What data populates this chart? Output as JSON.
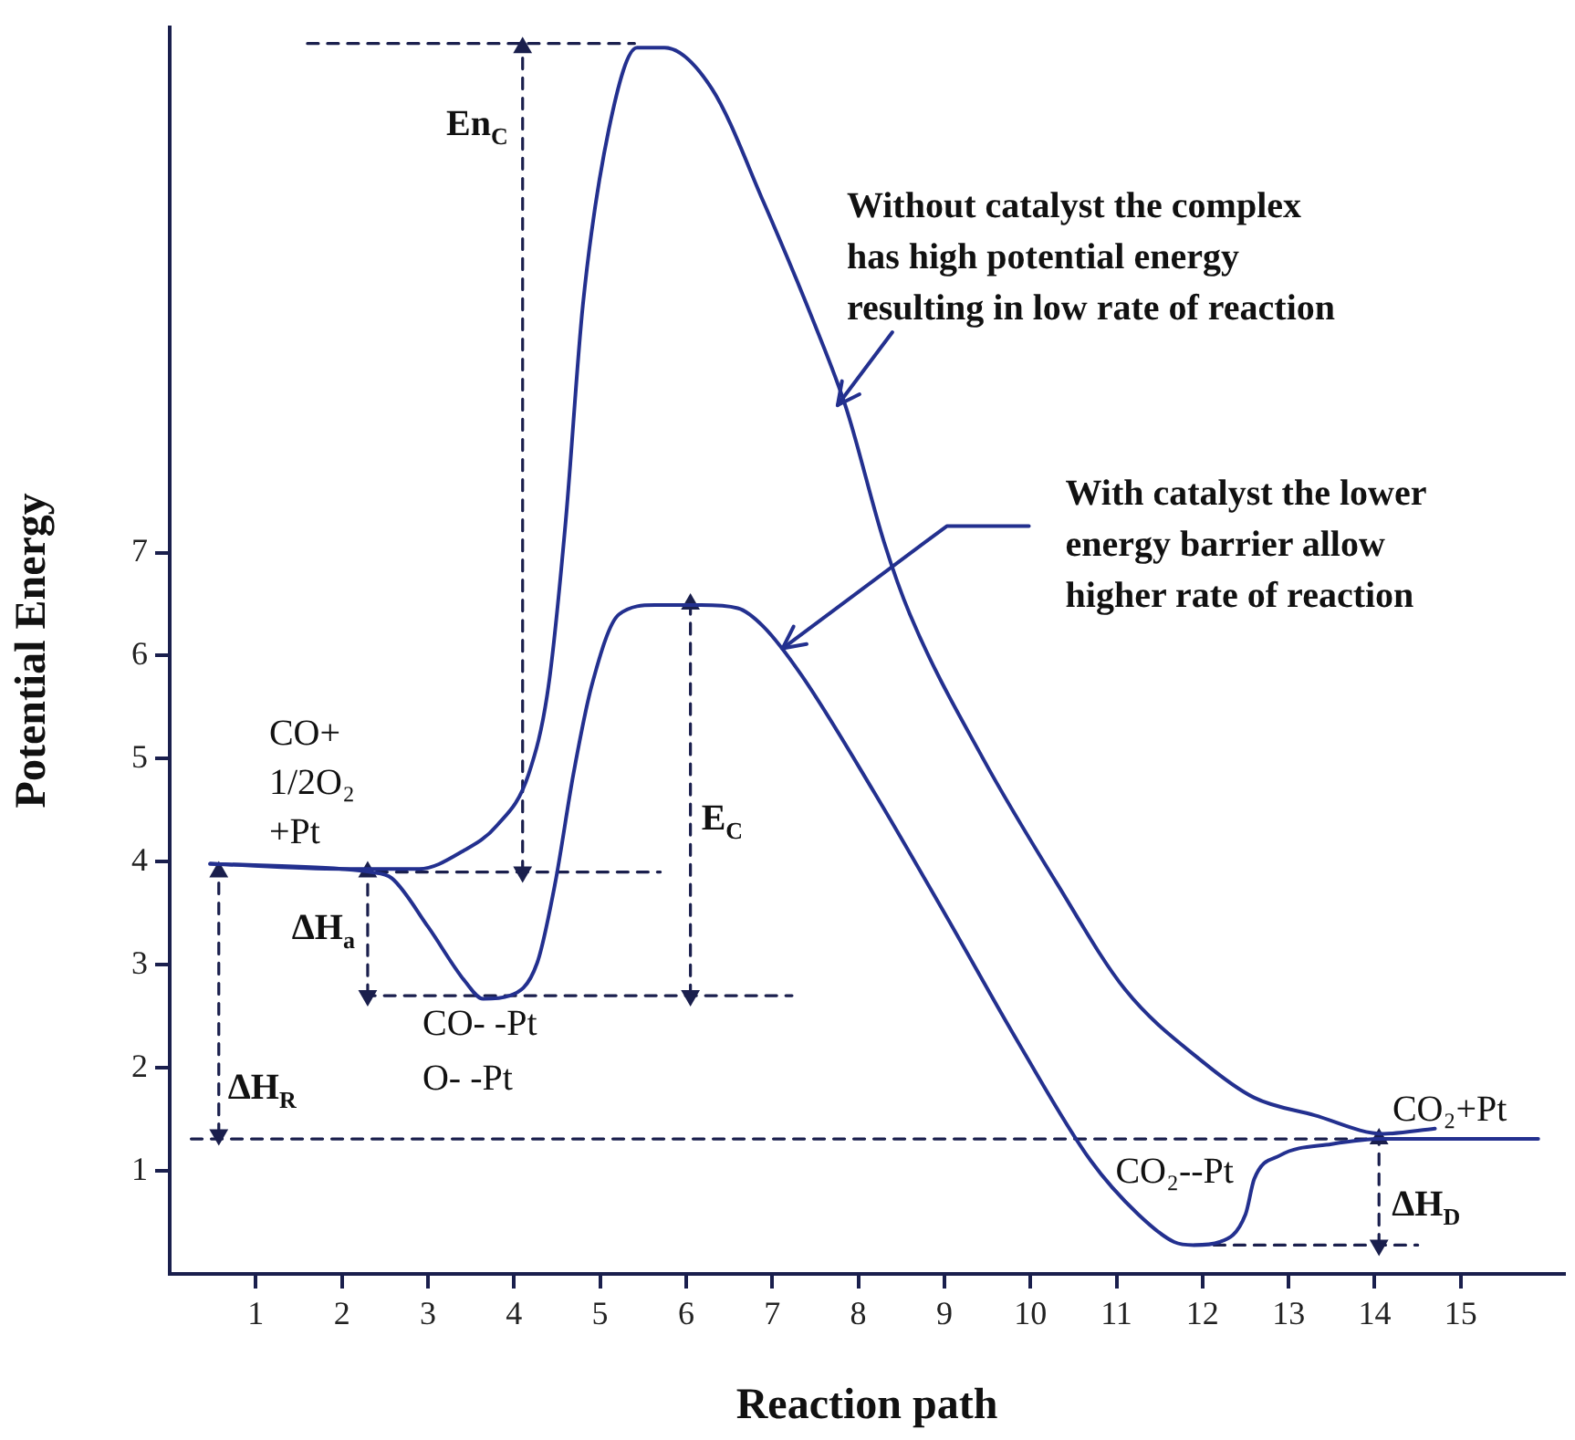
{
  "chart_data": {
    "type": "line",
    "xlabel": "Reaction path",
    "ylabel": "Potential Energy",
    "xlim": [
      0,
      16.2
    ],
    "ylim": [
      0,
      12.1
    ],
    "xticks": [
      1,
      2,
      3,
      4,
      5,
      6,
      7,
      8,
      9,
      10,
      11,
      12,
      13,
      14,
      15
    ],
    "yticks": [
      1,
      2,
      3,
      4,
      5,
      6,
      7
    ],
    "marker": "none",
    "series": [
      {
        "color": "#23308f",
        "x": [
          0.47,
          2.0,
          2.9,
          3.4,
          3.8,
          4.17,
          4.4,
          4.6,
          4.8,
          5.1,
          5.43,
          5.75,
          6.3,
          6.9,
          7.5,
          7.86,
          8.3,
          8.6,
          9.45,
          10.3,
          11.1,
          12.0,
          12.6,
          13.3,
          14.1,
          14.7
        ],
        "values": [
          3.98,
          3.93,
          3.93,
          4.1,
          4.35,
          4.85,
          5.7,
          7.3,
          9.4,
          11.1,
          11.9,
          11.9,
          11.5,
          10.4,
          9.2,
          8.4,
          7.1,
          6.4,
          5.0,
          3.8,
          2.76,
          2.06,
          1.71,
          1.54,
          1.36,
          1.41
        ]
      },
      {
        "color": "#23308f",
        "x": [
          0.47,
          2.0,
          2.33,
          2.58,
          3.0,
          3.43,
          3.64,
          3.95,
          4.27,
          4.48,
          4.69,
          4.9,
          5.22,
          5.64,
          6.17,
          6.6,
          6.9,
          7.34,
          8.18,
          9.03,
          9.87,
          10.7,
          11.25,
          11.67,
          11.9,
          12.2,
          12.5,
          12.6,
          12.9,
          13.5,
          14.1,
          15.9
        ],
        "values": [
          3.98,
          3.93,
          3.9,
          3.84,
          3.37,
          2.84,
          2.67,
          2.7,
          3.02,
          3.8,
          4.85,
          5.7,
          6.4,
          6.49,
          6.49,
          6.46,
          6.28,
          5.81,
          4.68,
          3.46,
          2.23,
          1.1,
          0.58,
          0.31,
          0.28,
          0.31,
          0.58,
          0.92,
          1.15,
          1.26,
          1.31,
          1.31
        ]
      },
      {
        "color": "#1a1f4d",
        "line_style": "dashed",
        "x": [
          1.6,
          5.4
        ],
        "values": [
          11.94,
          11.94
        ]
      },
      {
        "color": "#1a1f4d",
        "line_style": "dashed",
        "x": [
          2.4,
          5.7
        ],
        "values": [
          3.9,
          3.9
        ]
      },
      {
        "color": "#1a1f4d",
        "line_style": "dashed",
        "x": [
          2.26,
          7.23
        ],
        "values": [
          2.7,
          2.7
        ]
      },
      {
        "color": "#1a1f4d",
        "line_style": "dashed",
        "x": [
          0.25,
          14.1
        ],
        "values": [
          1.31,
          1.31
        ]
      },
      {
        "color": "#1a1f4d",
        "line_style": "dashed",
        "x": [
          11.9,
          14.5
        ],
        "values": [
          0.28,
          0.28
        ]
      },
      {
        "color": "#1a1f4d",
        "line_style": "dashed",
        "marker": "triangle",
        "x": [
          4.1,
          4.1
        ],
        "values": [
          3.9,
          11.9
        ]
      },
      {
        "color": "#1a1f4d",
        "line_style": "dashed",
        "marker": "triangle",
        "x": [
          6.05,
          6.05
        ],
        "values": [
          2.7,
          6.5
        ]
      },
      {
        "color": "#1a1f4d",
        "line_style": "dashed",
        "marker": "triangle",
        "x": [
          2.3,
          2.3
        ],
        "values": [
          2.7,
          3.9
        ]
      },
      {
        "color": "#1a1f4d",
        "line_style": "dashed",
        "marker": "triangle",
        "x": [
          0.57,
          0.57
        ],
        "values": [
          1.35,
          3.9
        ]
      },
      {
        "color": "#1a1f4d",
        "line_style": "dashed",
        "marker": "triangle",
        "x": [
          14.05,
          14.05
        ],
        "values": [
          0.28,
          1.31
        ]
      }
    ],
    "annotations": [
      {
        "text": "CO+\n1/2O₂\n+Pt",
        "x": 2.3,
        "y": 3.9
      },
      {
        "text": "CO- -Pt\nO- -Pt",
        "x": 3.7,
        "y": 2.67
      },
      {
        "text": "CO₂--Pt",
        "x": 11.9,
        "y": 0.28
      },
      {
        "text": "CO₂+Pt",
        "x": 14.1,
        "y": 1.31
      },
      {
        "text": "En$_{C}$",
        "x": 4.1,
        "y": 11
      },
      {
        "text": "E$_{C}$",
        "x": 6.05,
        "y": 4.6
      },
      {
        "text": "ΔH$_{a}$",
        "x": 2.3,
        "y": 3.3
      },
      {
        "text": "ΔH$_{R}$",
        "x": 0.57,
        "y": 2.0
      },
      {
        "text": "ΔH$_{D}$",
        "x": 14.05,
        "y": 0.8
      },
      {
        "text": "Without catalyst the complex\nhas high potential energy\nresulting in low rate of reaction",
        "x": 7.76,
        "y": 8.43
      },
      {
        "text": "With catalyst the lower\nenergy barrier allow\nhigher rate of reaction",
        "x": 7.12,
        "y": 6.07
      }
    ]
  }
}
